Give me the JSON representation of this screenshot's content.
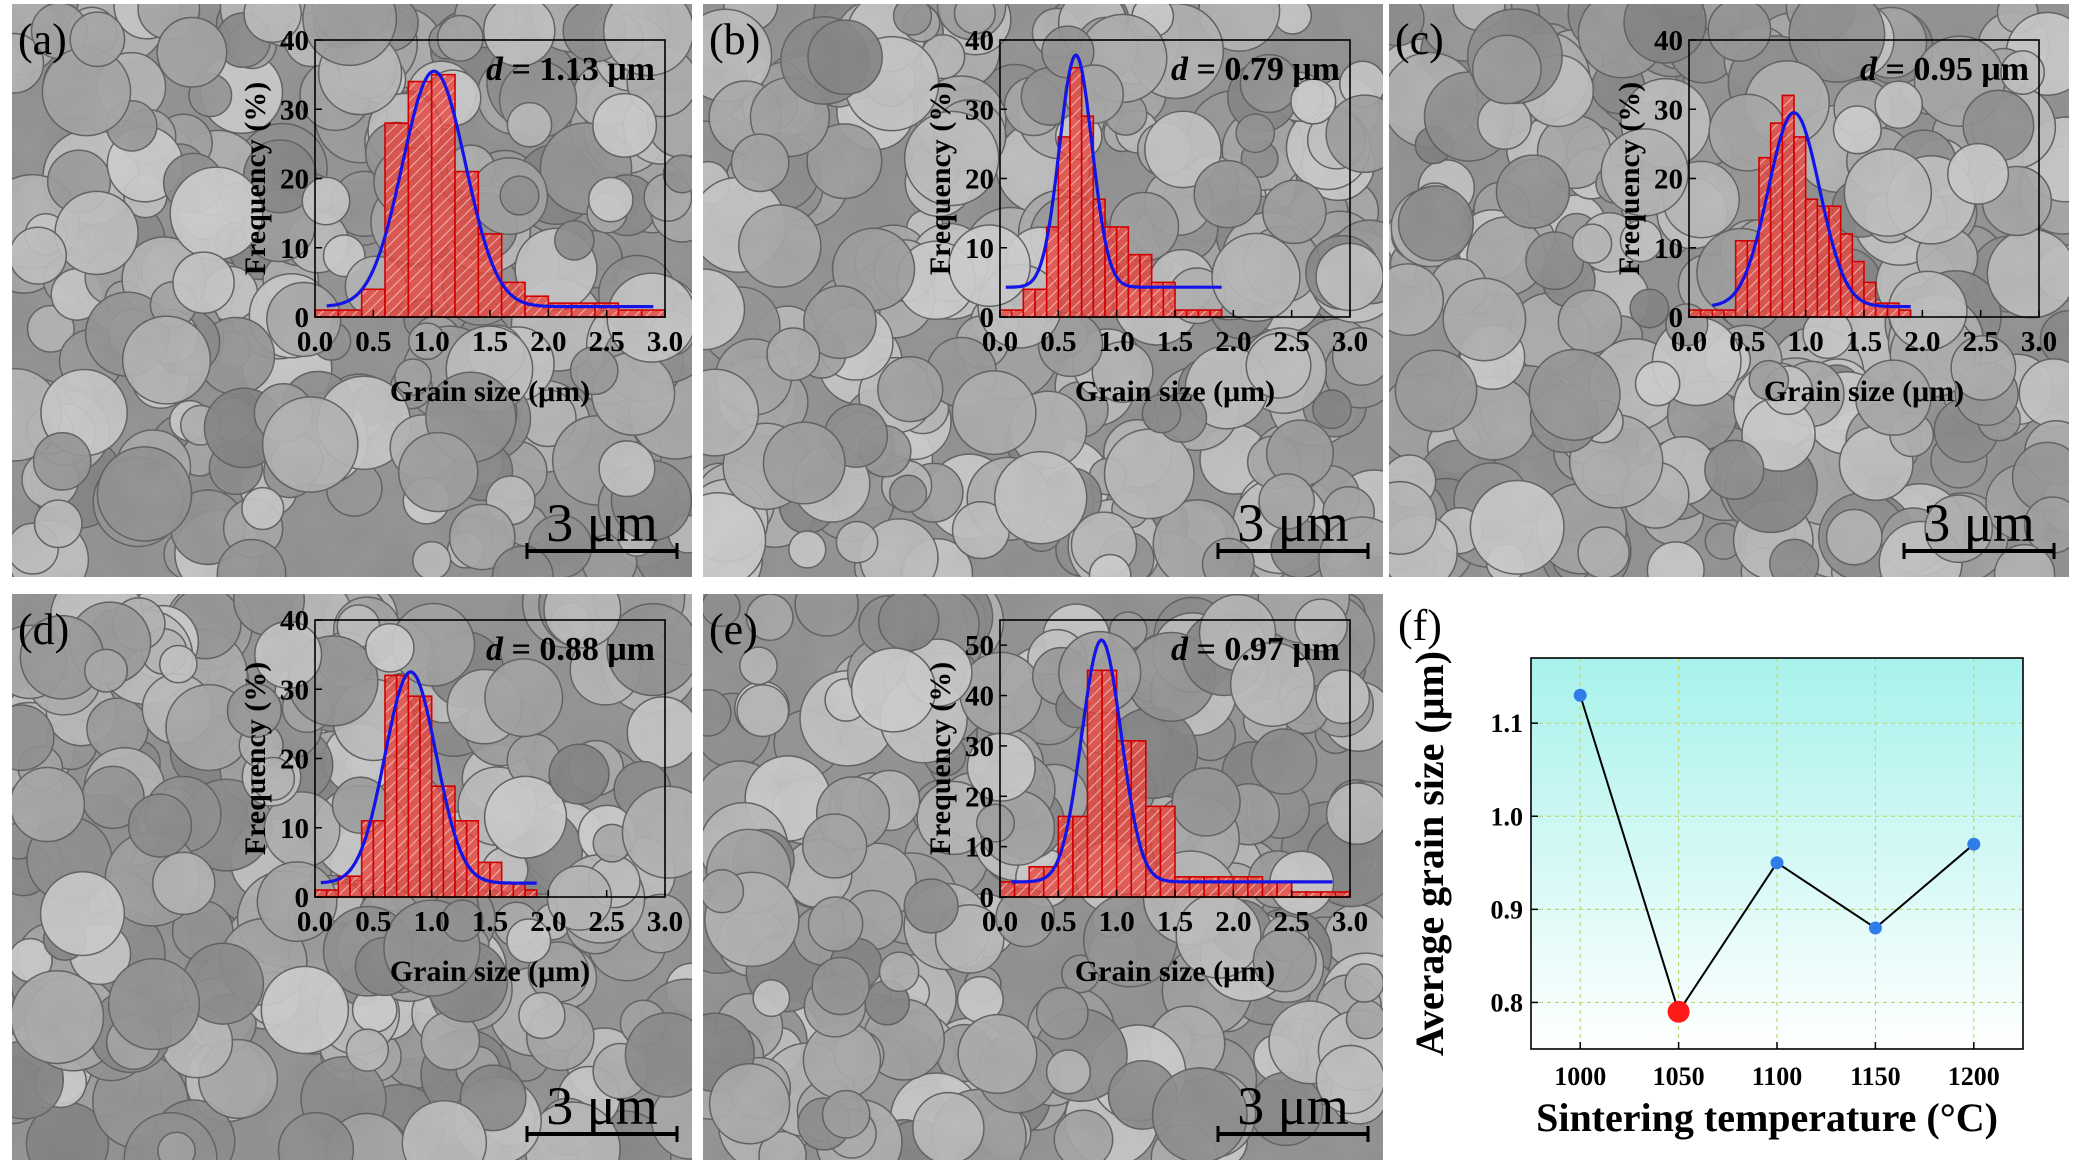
{
  "chart_data": [
    {
      "type": "bar",
      "panel_label": "(a)",
      "annotation_var": "d",
      "annotation_value": "= 1.13 μm",
      "scale_bar_label": "3 μm",
      "xlabel": "Grain size (μm)",
      "ylabel": "Frequency (%)",
      "xlim": [
        0,
        3
      ],
      "ylim": [
        0,
        40
      ],
      "xticks": [
        "0.0",
        "0.5",
        "1.0",
        "1.5",
        "2.0",
        "2.5",
        "3.0"
      ],
      "yticks": [
        "0",
        "10",
        "20",
        "30",
        "40"
      ],
      "bin_width": 0.2,
      "bin_starts": [
        0.0,
        0.2,
        0.4,
        0.6,
        0.8,
        1.0,
        1.2,
        1.4,
        1.6,
        1.8,
        2.0,
        2.2,
        2.4,
        2.6,
        2.8
      ],
      "values": [
        1,
        1,
        4,
        28,
        34,
        35,
        21,
        12,
        5,
        3,
        2,
        2,
        2,
        1,
        1
      ],
      "fit": {
        "mean": 1.02,
        "sigma": 0.27,
        "amplitude": 34,
        "baseline": 1.5,
        "x_range": [
          0.1,
          2.9
        ]
      }
    },
    {
      "type": "bar",
      "panel_label": "(b)",
      "annotation_var": "d",
      "annotation_value": "= 0.79 μm",
      "scale_bar_label": "3 μm",
      "xlabel": "Grain size (μm)",
      "ylabel": "Frequency (%)",
      "xlim": [
        0,
        3
      ],
      "ylim": [
        0,
        40
      ],
      "xticks": [
        "0.0",
        "0.5",
        "1.0",
        "1.5",
        "2.0",
        "2.5",
        "3.0"
      ],
      "yticks": [
        "0",
        "10",
        "20",
        "30",
        "40"
      ],
      "bin_width": 0.1,
      "bin_starts": [
        0.0,
        0.1,
        0.2,
        0.3,
        0.4,
        0.5,
        0.6,
        0.7,
        0.8,
        0.9,
        1.0,
        1.1,
        1.2,
        1.3,
        1.4,
        1.5,
        1.6,
        1.7,
        1.8,
        1.9
      ],
      "values": [
        1,
        1,
        4,
        4,
        13,
        26,
        36,
        29,
        17,
        13,
        13,
        9,
        9,
        5,
        5,
        1,
        1,
        1,
        1,
        0
      ],
      "fit": {
        "mean": 0.65,
        "sigma": 0.14,
        "amplitude": 33.5,
        "baseline": 4.3,
        "x_range": [
          0.05,
          1.9
        ]
      }
    },
    {
      "type": "bar",
      "panel_label": "(c)",
      "annotation_var": "d",
      "annotation_value": "= 0.95 μm",
      "scale_bar_label": "3 μm",
      "xlabel": "Grain size (μm)",
      "ylabel": "Frequency (%)",
      "xlim": [
        0,
        3
      ],
      "ylim": [
        0,
        40
      ],
      "xticks": [
        "0.0",
        "0.5",
        "1.0",
        "1.5",
        "2.0",
        "2.5",
        "3.0"
      ],
      "yticks": [
        "0",
        "10",
        "20",
        "30",
        "40"
      ],
      "bin_width": 0.1,
      "bin_starts": [
        0.0,
        0.1,
        0.2,
        0.3,
        0.4,
        0.5,
        0.6,
        0.7,
        0.8,
        0.9,
        1.0,
        1.1,
        1.2,
        1.3,
        1.4,
        1.5,
        1.6,
        1.7,
        1.8,
        1.9
      ],
      "values": [
        1,
        1,
        1,
        1,
        11,
        11,
        23,
        28,
        32,
        26,
        17,
        16,
        16,
        12,
        8,
        5,
        2,
        2,
        1,
        0
      ],
      "fit": {
        "mean": 0.9,
        "sigma": 0.22,
        "amplitude": 28,
        "baseline": 1.5,
        "x_range": [
          0.2,
          1.9
        ]
      }
    },
    {
      "type": "bar",
      "panel_label": "(d)",
      "annotation_var": "d",
      "annotation_value": "= 0.88 μm",
      "scale_bar_label": "3 μm",
      "xlabel": "Grain size (μm)",
      "ylabel": "Frequency (%)",
      "xlim": [
        0,
        3
      ],
      "ylim": [
        0,
        40
      ],
      "xticks": [
        "0.0",
        "0.5",
        "1.0",
        "1.5",
        "2.0",
        "2.5",
        "3.0"
      ],
      "yticks": [
        "0",
        "10",
        "20",
        "30",
        "40"
      ],
      "bin_width": 0.1,
      "bin_starts": [
        0.0,
        0.1,
        0.2,
        0.3,
        0.4,
        0.5,
        0.6,
        0.7,
        0.8,
        0.9,
        1.0,
        1.1,
        1.2,
        1.3,
        1.4,
        1.5,
        1.6,
        1.7,
        1.8,
        1.9
      ],
      "values": [
        1,
        1,
        3,
        3,
        11,
        11,
        32,
        32,
        29,
        29,
        16,
        16,
        11,
        11,
        5,
        5,
        2,
        2,
        1,
        0
      ],
      "fit": {
        "mean": 0.82,
        "sigma": 0.22,
        "amplitude": 30.5,
        "baseline": 2,
        "x_range": [
          0.05,
          1.9
        ]
      }
    },
    {
      "type": "bar",
      "panel_label": "(e)",
      "annotation_var": "d",
      "annotation_value": "= 0.97 μm",
      "scale_bar_label": "3 μm",
      "xlabel": "Grain size (μm)",
      "ylabel": "Frequency (%)",
      "xlim": [
        0,
        3
      ],
      "ylim": [
        0,
        55
      ],
      "xticks": [
        "0.0",
        "0.5",
        "1.0",
        "1.5",
        "2.0",
        "2.5",
        "3.0"
      ],
      "yticks": [
        "0",
        "10",
        "20",
        "30",
        "40",
        "50"
      ],
      "bin_width": 0.125,
      "bin_starts": [
        0.0,
        0.125,
        0.25,
        0.375,
        0.5,
        0.625,
        0.75,
        0.875,
        1.0,
        1.125,
        1.25,
        1.375,
        1.5,
        1.625,
        1.75,
        1.875,
        2.0,
        2.125,
        2.25,
        2.375,
        2.5,
        2.625,
        2.75,
        2.875
      ],
      "values": [
        3,
        3,
        6,
        6,
        16,
        16,
        45,
        45,
        31,
        31,
        18,
        18,
        4,
        4,
        4,
        4,
        4,
        4,
        3,
        3,
        1,
        1,
        1,
        1
      ],
      "fit": {
        "mean": 0.87,
        "sigma": 0.17,
        "amplitude": 48,
        "baseline": 3,
        "x_range": [
          0.1,
          2.85
        ]
      }
    },
    {
      "type": "line",
      "panel_label": "(f)",
      "xlabel": "Sintering temperature (°C)",
      "ylabel": "Average grain size (μm)",
      "x": [
        1000,
        1050,
        1100,
        1150,
        1200
      ],
      "y": [
        1.13,
        0.79,
        0.95,
        0.88,
        0.97
      ],
      "xlim": [
        975,
        1225
      ],
      "ylim": [
        0.75,
        1.17
      ],
      "xticks": [
        "1000",
        "1050",
        "1100",
        "1150",
        "1200"
      ],
      "yticks": [
        "0.8",
        "0.9",
        "1.0",
        "1.1"
      ],
      "highlight_index": 1,
      "grid": true
    }
  ],
  "colors": {
    "bar_fill": "#e8433a",
    "bar_edge": "#d00000",
    "fit_line": "#1414e6",
    "point": "#2f7de8",
    "highlight_point": "#ff1a1a",
    "plot_bg_top": "#a8f2ec",
    "plot_bg_bottom": "#ffffff",
    "sem_bg": "#8f8f8f"
  }
}
